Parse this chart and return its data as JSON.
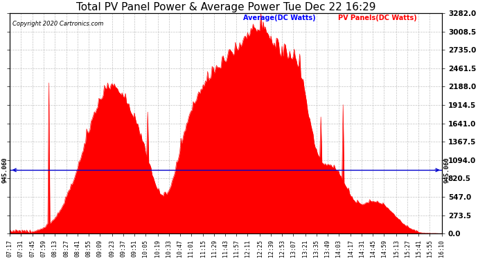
{
  "title": "Total PV Panel Power & Average Power Tue Dec 22 16:29",
  "copyright": "Copyright 2020 Cartronics.com",
  "legend_avg": "Average(DC Watts)",
  "legend_pv": "PV Panels(DC Watts)",
  "avg_value": 945.06,
  "avg_label": "945.060",
  "ylim": [
    0,
    3282.0
  ],
  "yticks": [
    0.0,
    273.5,
    547.0,
    820.5,
    1094.0,
    1367.5,
    1641.0,
    1914.5,
    2188.0,
    2461.5,
    2735.0,
    3008.5,
    3282.0
  ],
  "bg_color": "#ffffff",
  "fill_color": "#ff0000",
  "avg_line_color": "#0000cc",
  "grid_color": "#bbbbbb",
  "title_color": "#000000",
  "copyright_color": "#000000",
  "legend_avg_color": "#0000ff",
  "legend_pv_color": "#ff0000",
  "xtick_label_fontsize": 6,
  "ytick_label_fontsize": 7.5,
  "title_fontsize": 11,
  "time_labels": [
    "07:17",
    "07:31",
    "07:45",
    "07:59",
    "08:13",
    "08:27",
    "08:41",
    "08:55",
    "09:09",
    "09:23",
    "09:37",
    "09:51",
    "10:05",
    "10:19",
    "10:33",
    "10:47",
    "11:01",
    "11:15",
    "11:29",
    "11:43",
    "11:57",
    "12:11",
    "12:25",
    "12:39",
    "12:53",
    "13:07",
    "13:21",
    "13:35",
    "13:49",
    "14:03",
    "14:17",
    "14:31",
    "14:45",
    "14:59",
    "15:13",
    "15:27",
    "15:41",
    "15:55",
    "16:10"
  ]
}
